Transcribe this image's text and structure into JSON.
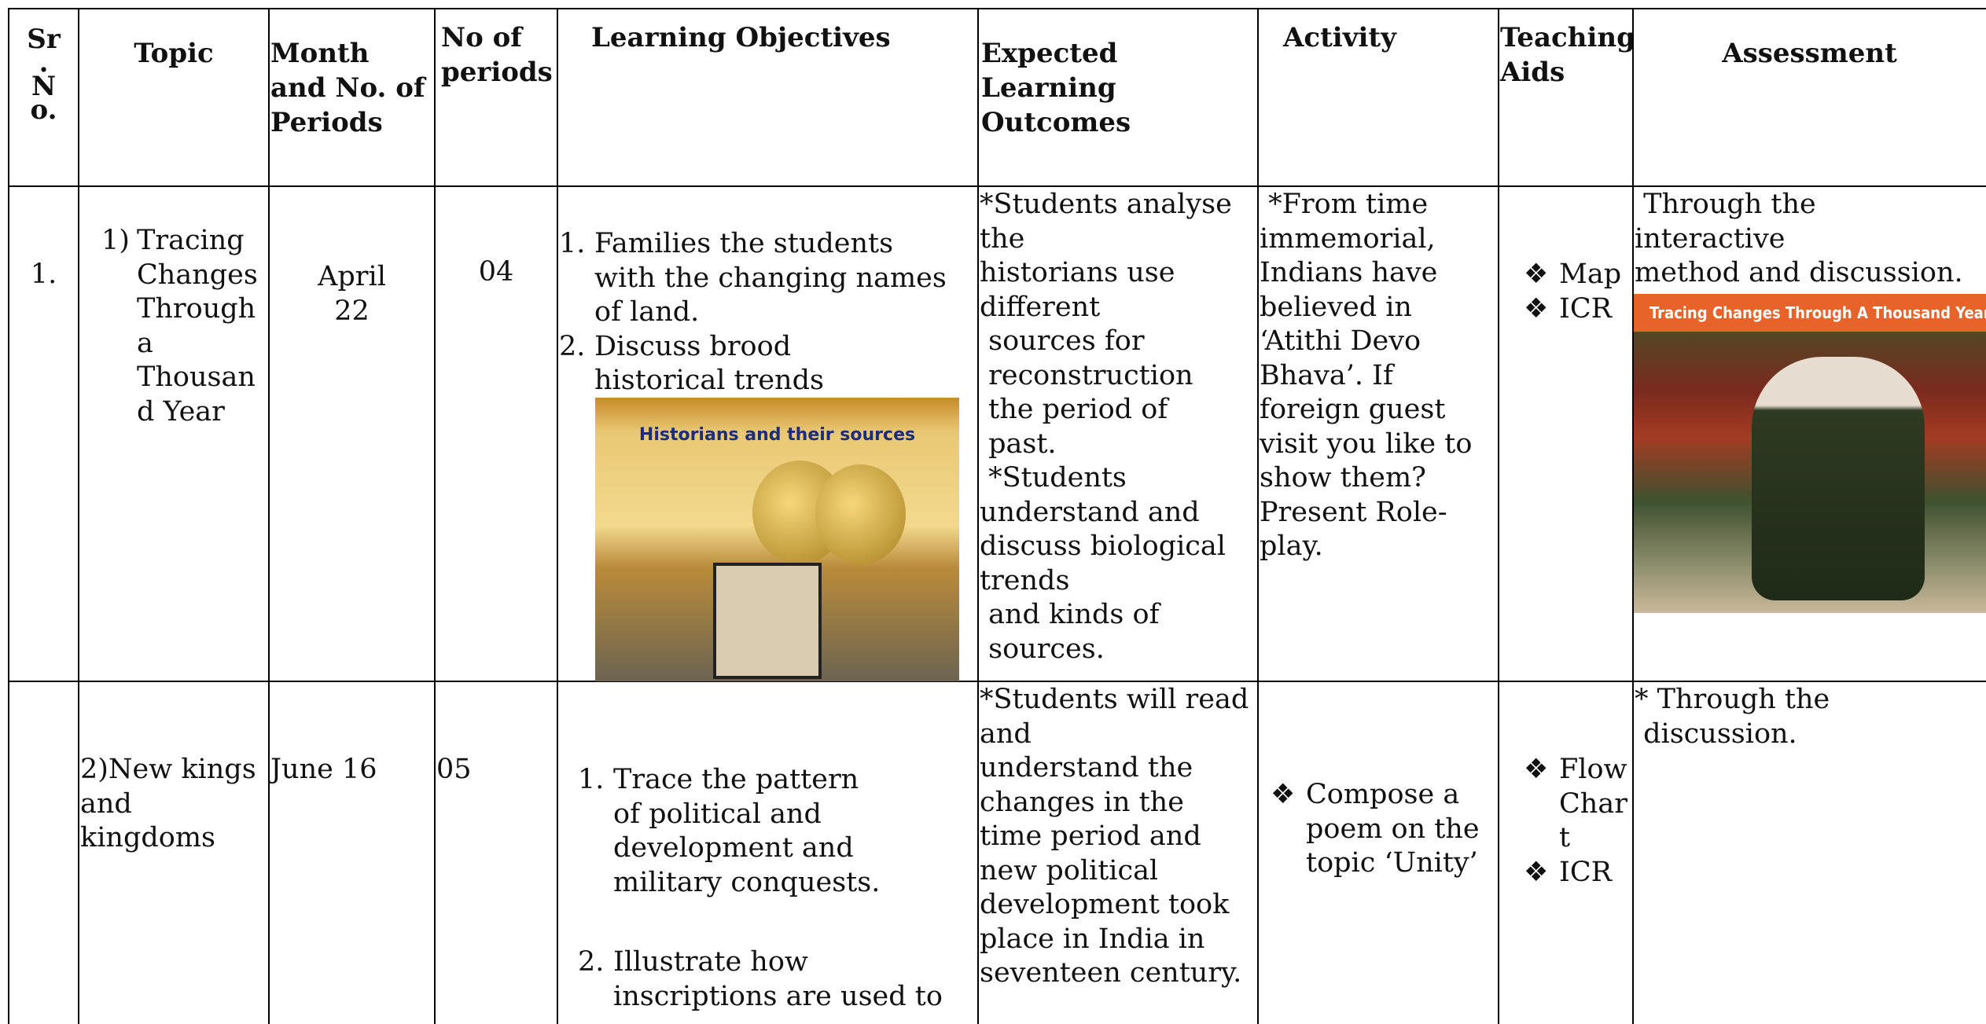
{
  "table": {
    "headers": [
      [
        "Sr",
        ".",
        "N",
        "o."
      ],
      [
        "Topic"
      ],
      [
        "Month",
        "and No. of",
        "Periods"
      ],
      [
        "No of",
        "periods"
      ],
      [
        "Learning Objectives"
      ],
      [
        "Expected",
        "Learning",
        "Outcomes"
      ],
      [
        "Activity"
      ],
      [
        "Teaching",
        "Aids"
      ],
      [
        "Assessment"
      ]
    ],
    "rows": [
      {
        "sr": {
          "lines": [
            "1."
          ]
        },
        "topic": {
          "blocks": [
            {
              "marker": "1)",
              "lines": [
                "Tracing",
                "Changes",
                "Through",
                "a",
                "Thousan",
                "d Year"
              ]
            }
          ]
        },
        "month": {
          "lines": [
            "April",
            "22"
          ]
        },
        "periods": {
          "lines": [
            "04"
          ]
        },
        "objectives": {
          "blocks": [
            {
              "marker": "1.",
              "lines": [
                "Families the students",
                "with the changing names",
                "of land."
              ]
            },
            {
              "marker": "2.",
              "lines": [
                "Discuss brood",
                "historical trends"
              ]
            }
          ],
          "image": {
            "caption": "Historians and their sources"
          }
        },
        "outcomes": {
          "lines": [
            "*Students analyse",
            "the",
            "historians use",
            "different",
            " sources for",
            " reconstruction",
            " the period of",
            " past.",
            " *Students",
            "understand and",
            "discuss biological",
            "trends",
            " and kinds of",
            " sources."
          ]
        },
        "activity": {
          "lines": [
            " *From time",
            "immemorial,",
            "Indians have",
            "believed in",
            "‘Atithi Devo",
            "Bhava’. If",
            "foreign guest",
            "visit you like to",
            "show them?",
            "Present Role-",
            "play."
          ]
        },
        "aids": {
          "blocks": [
            {
              "marker": "❖",
              "lines": [
                "Map"
              ]
            },
            {
              "marker": "❖",
              "lines": [
                "ICR"
              ]
            }
          ]
        },
        "assessment": {
          "lines": [
            " Through the",
            "interactive",
            "method and discussion."
          ],
          "image": {
            "caption": "Tracing Changes Through A Thousand Years"
          }
        }
      },
      {
        "topic": {
          "lines": [
            "2)New kings",
            "and",
            "kingdoms"
          ]
        },
        "month": {
          "lines": [
            "June 16"
          ]
        },
        "periods": {
          "lines": [
            "05"
          ]
        },
        "objectives": {
          "blocks": [
            {
              "marker": "1.",
              "lines": [
                "Trace the pattern",
                "of political and",
                "development and",
                "military conquests."
              ]
            },
            {
              "marker": "2.",
              "lines": [
                "Illustrate how",
                "inscriptions are used to"
              ]
            }
          ]
        },
        "outcomes": {
          "lines": [
            "*Students will read",
            "and",
            "understand the",
            "changes in the",
            "time period and",
            "new political",
            "development took",
            "place in India in",
            "seventeen century."
          ]
        },
        "activity": {
          "blocks": [
            {
              "marker": "❖",
              "lines": [
                "Compose a",
                "poem on the",
                "topic ‘Unity’"
              ]
            }
          ]
        },
        "aids": {
          "blocks": [
            {
              "marker": "❖",
              "lines": [
                "Flow",
                "Char",
                "t"
              ]
            },
            {
              "marker": "❖",
              "lines": [
                "ICR"
              ]
            }
          ]
        },
        "assessment": {
          "lines": [
            "* Through the",
            " discussion."
          ]
        }
      }
    ]
  }
}
